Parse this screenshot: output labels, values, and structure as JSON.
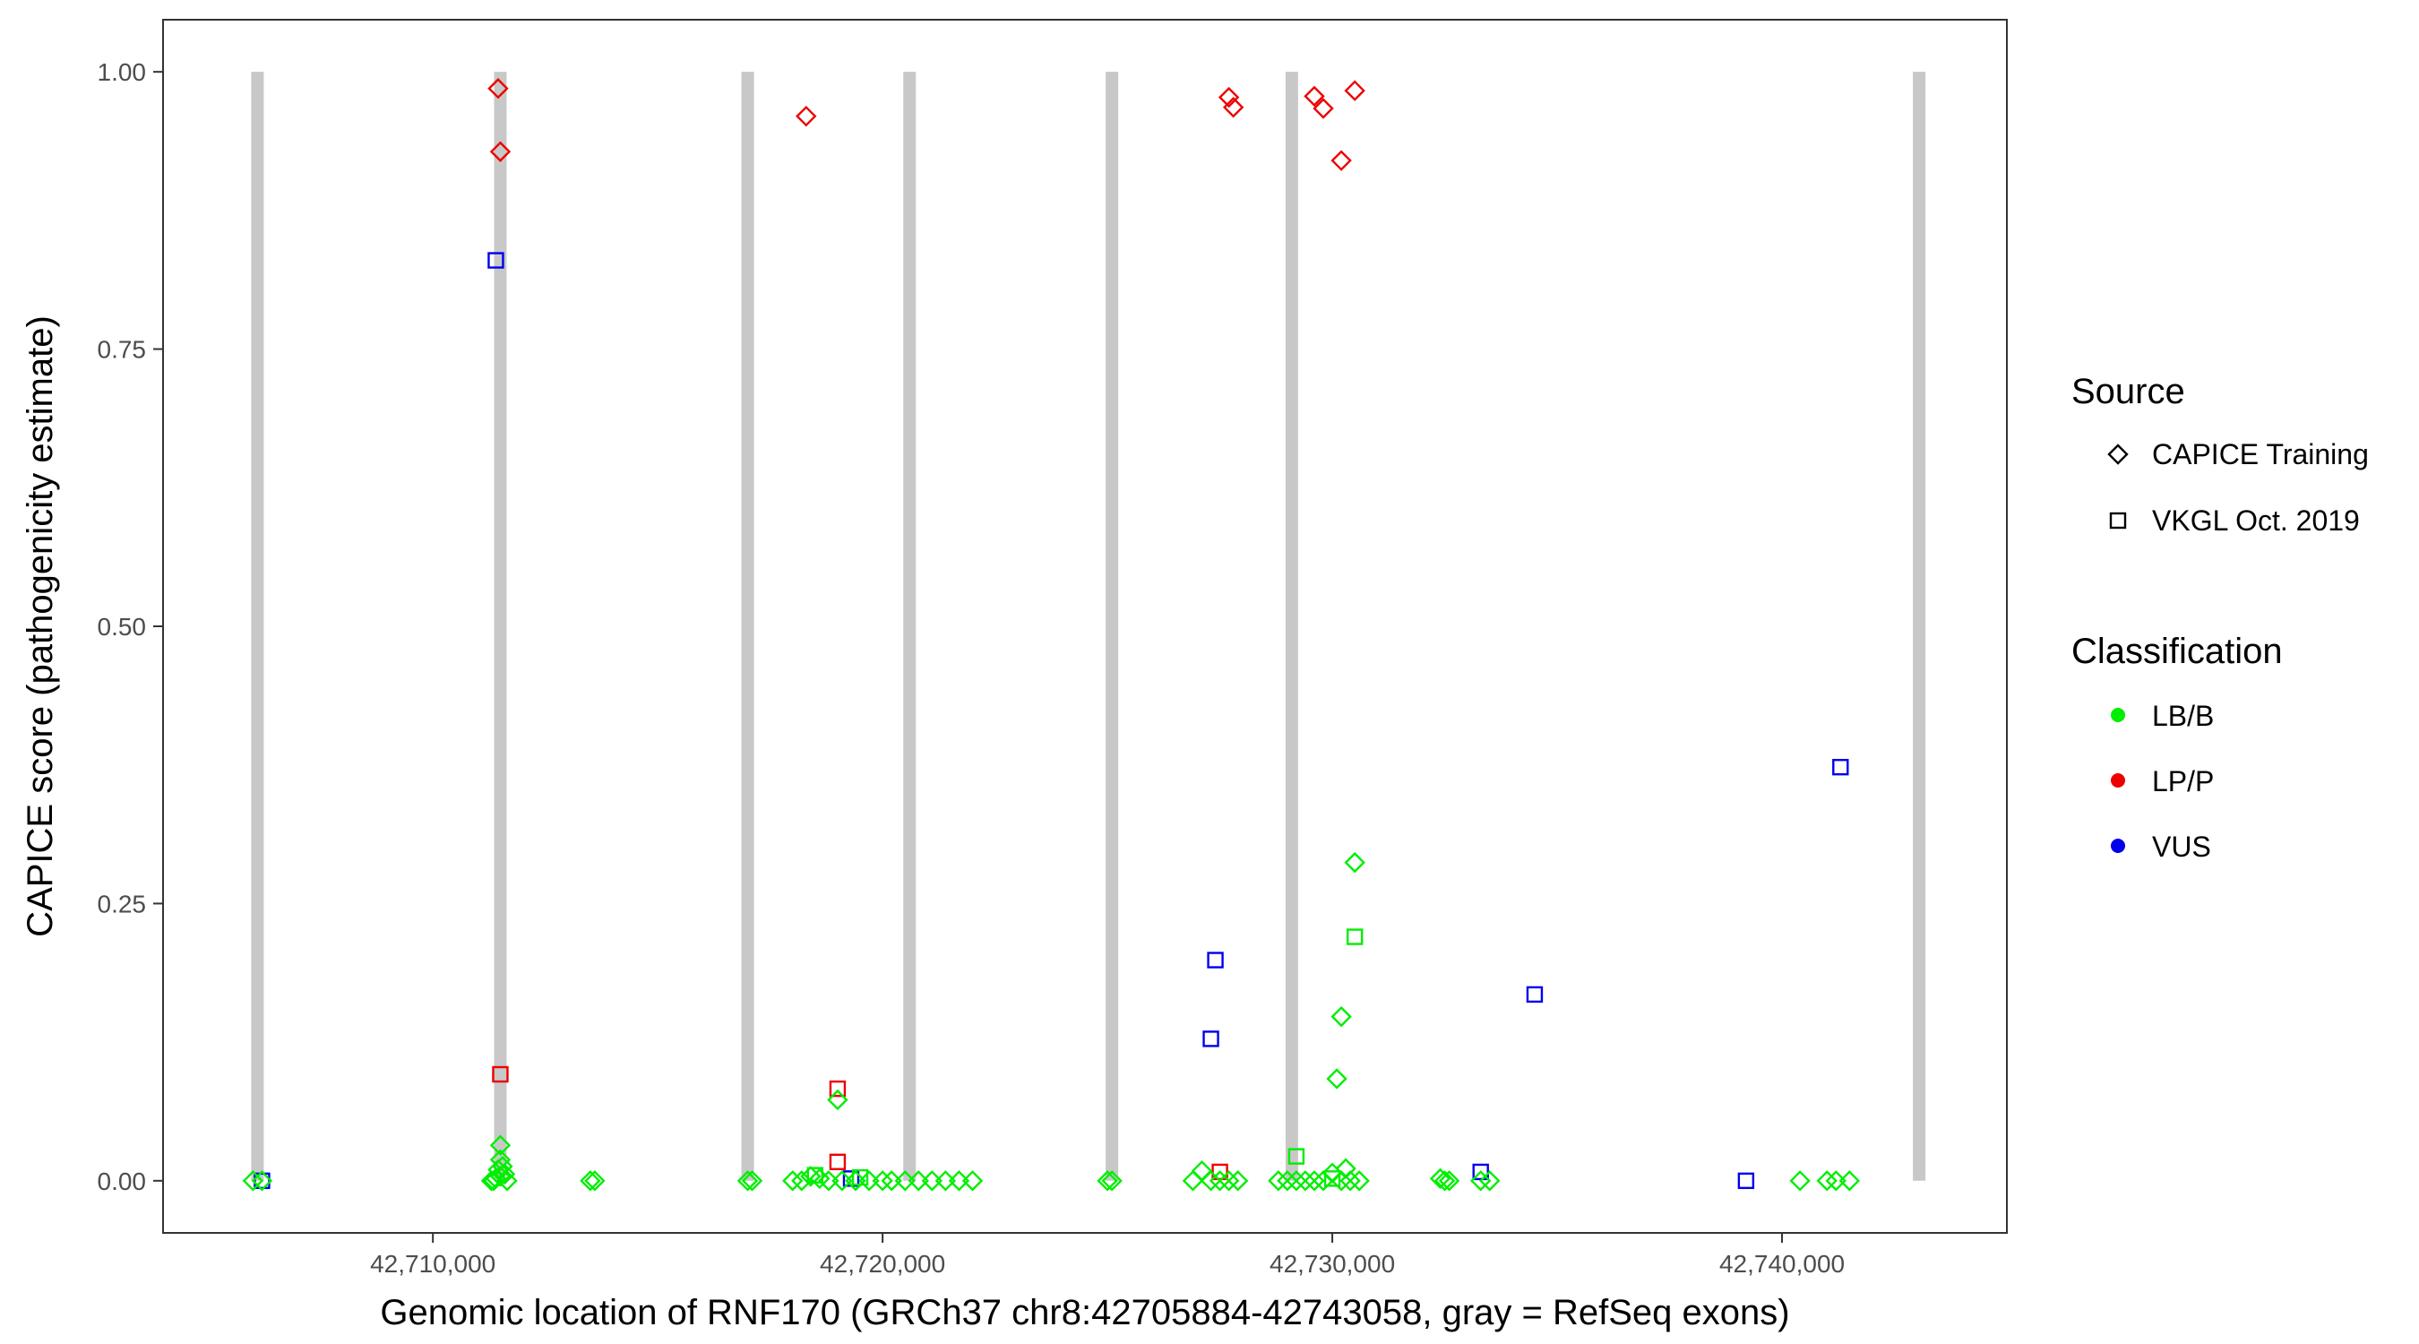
{
  "chart_data": {
    "type": "scatter",
    "xlabel": "Genomic location of RNF170 (GRCh37 chr8:42705884-42743058, gray = RefSeq exons)",
    "ylabel": "CAPICE score (pathogenicity estimate)",
    "xlim": [
      42704000,
      42745000
    ],
    "ylim": [
      -0.047,
      1.047
    ],
    "x_ticks": [
      42710000,
      42720000,
      42730000,
      42740000
    ],
    "x_tick_labels": [
      "42,710,000",
      "42,720,000",
      "42,730,000",
      "42,740,000"
    ],
    "y_ticks": [
      0,
      0.25,
      0.5,
      0.75,
      1.0
    ],
    "y_tick_labels": [
      "0.00",
      "0.25",
      "0.50",
      "0.75",
      "1.00"
    ],
    "grid": false,
    "exon_positions": [
      42706100,
      42711500,
      42717000,
      42720600,
      42725100,
      42729100,
      42743050
    ],
    "exon_color": "#c8c8c8",
    "colors": {
      "LB/B": "#00ee00",
      "LP/P": "#ee0000",
      "VUS": "#0000ee"
    },
    "legend": {
      "placement": "right",
      "source_title": "Source",
      "source_items": [
        {
          "label": "CAPICE Training",
          "shape": "diamond"
        },
        {
          "label": "VKGL Oct. 2019",
          "shape": "square"
        }
      ],
      "classification_title": "Classification",
      "classification_items": [
        {
          "label": "LB/B",
          "color": "#00ee00"
        },
        {
          "label": "LP/P",
          "color": "#ee0000"
        },
        {
          "label": "VUS",
          "color": "#0000ee"
        }
      ]
    },
    "series": [
      {
        "source": "CAPICE Training",
        "classification": "LP/P",
        "x": [
          42711450,
          42711500,
          42718300,
          42727700,
          42727800,
          42729600,
          42729800,
          42730200,
          42730500
        ],
        "y": [
          0.985,
          0.928,
          0.96,
          0.977,
          0.968,
          0.978,
          0.967,
          0.92,
          0.983
        ]
      },
      {
        "source": "VKGL Oct. 2019",
        "classification": "LP/P",
        "x": [
          42711500,
          42719000,
          42719000,
          42727500
        ],
        "y": [
          0.096,
          0.083,
          0.017,
          0.008
        ]
      },
      {
        "source": "VKGL Oct. 2019",
        "classification": "VUS",
        "x": [
          42706200,
          42711400,
          42719300,
          42727400,
          42727300,
          42733300,
          42734500,
          42739200,
          42741300
        ],
        "y": [
          0.0,
          0.83,
          0.002,
          0.199,
          0.128,
          0.008,
          0.168,
          0.0,
          0.373
        ]
      },
      {
        "source": "VKGL Oct. 2019",
        "classification": "LB/B",
        "x": [
          42729200,
          42730500,
          42719500,
          42718500,
          42730000
        ],
        "y": [
          0.022,
          0.22,
          0.003,
          0.005,
          0.002
        ]
      },
      {
        "source": "CAPICE Training",
        "classification": "LB/B",
        "x": [
          42706000,
          42706200,
          42711300,
          42711400,
          42711500,
          42711600,
          42711450,
          42711550,
          42711500,
          42711350,
          42711650,
          42711500,
          42713500,
          42713600,
          42717000,
          42717100,
          42718000,
          42718200,
          42718400,
          42718600,
          42718800,
          42719000,
          42719100,
          42719400,
          42719700,
          42720000,
          42720200,
          42720500,
          42720800,
          42721100,
          42721400,
          42721700,
          42722000,
          42725000,
          42725100,
          42726900,
          42727100,
          42727300,
          42727500,
          42727700,
          42727900,
          42728800,
          42729000,
          42729200,
          42729400,
          42729600,
          42729800,
          42730000,
          42730200,
          42730400,
          42730600,
          42730100,
          42730200,
          42730500,
          42730300,
          42732400,
          42732500,
          42732600,
          42733300,
          42733500,
          42740400,
          42741000,
          42741200,
          42741500
        ],
        "y": [
          0.0,
          0.0,
          0.0,
          0.002,
          0.004,
          0.006,
          0.01,
          0.013,
          0.019,
          0.0,
          0.0,
          0.032,
          0.0,
          0.0,
          0.0,
          0.0,
          0.0,
          0.0,
          0.004,
          0.002,
          0.0,
          0.073,
          0.0,
          0.0,
          0.0,
          0.0,
          0.0,
          0.0,
          0.0,
          0.0,
          0.0,
          0.0,
          0.0,
          0.0,
          0.0,
          0.0,
          0.009,
          0.0,
          0.0,
          0.0,
          0.0,
          0.0,
          0.0,
          0.0,
          0.0,
          0.0,
          0.0,
          0.007,
          0.0,
          0.0,
          0.0,
          0.092,
          0.148,
          0.287,
          0.011,
          0.002,
          0.0,
          0.0,
          0.0,
          0.0,
          0.0,
          0.0,
          0.0,
          0.0
        ]
      }
    ]
  }
}
